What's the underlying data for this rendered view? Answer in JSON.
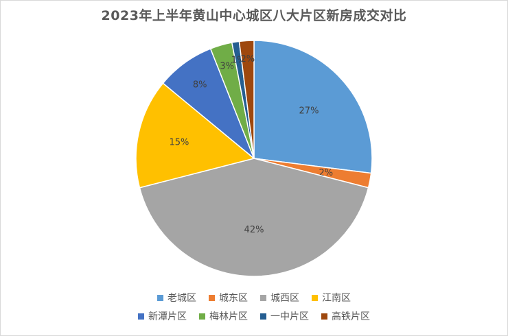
{
  "chart_data": {
    "type": "pie",
    "title": "2023年上半年黄山中心城区八大片区新房成交对比",
    "categories": [
      "老城区",
      "城东区",
      "城西区",
      "江南区",
      "新潭片区",
      "梅林片区",
      "一中片区",
      "高铁片区"
    ],
    "values": [
      27,
      2,
      42,
      15,
      8,
      3,
      1,
      2
    ],
    "data_labels": [
      "27%",
      "2%",
      "42%",
      "15%",
      "8%",
      "3%",
      "1%",
      "2%"
    ],
    "colors": [
      "#5b9bd5",
      "#ed7d31",
      "#a5a5a5",
      "#ffc000",
      "#4472c4",
      "#70ad47",
      "#255e91",
      "#9e480e"
    ],
    "legend_position": "bottom",
    "start_angle_deg": 0,
    "direction": "clockwise"
  }
}
